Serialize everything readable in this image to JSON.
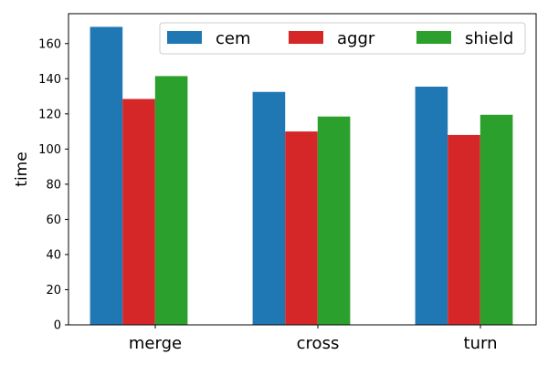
{
  "chart_data": {
    "type": "bar",
    "title": "",
    "xlabel": "",
    "ylabel": "time",
    "ylim": [
      0,
      177
    ],
    "yticks": [
      0,
      20,
      40,
      60,
      80,
      100,
      120,
      140,
      160
    ],
    "categories": [
      "merge",
      "cross",
      "turn"
    ],
    "series": [
      {
        "name": "cem",
        "color": "#1f77b4",
        "values": [
          169.5,
          132.5,
          135.5
        ]
      },
      {
        "name": "aggr",
        "color": "#d62728",
        "values": [
          128.5,
          110.0,
          108.0
        ]
      },
      {
        "name": "shield",
        "color": "#2ca02c",
        "values": [
          141.5,
          118.5,
          119.5
        ]
      }
    ],
    "grid": false,
    "legend_position": "top-right"
  }
}
